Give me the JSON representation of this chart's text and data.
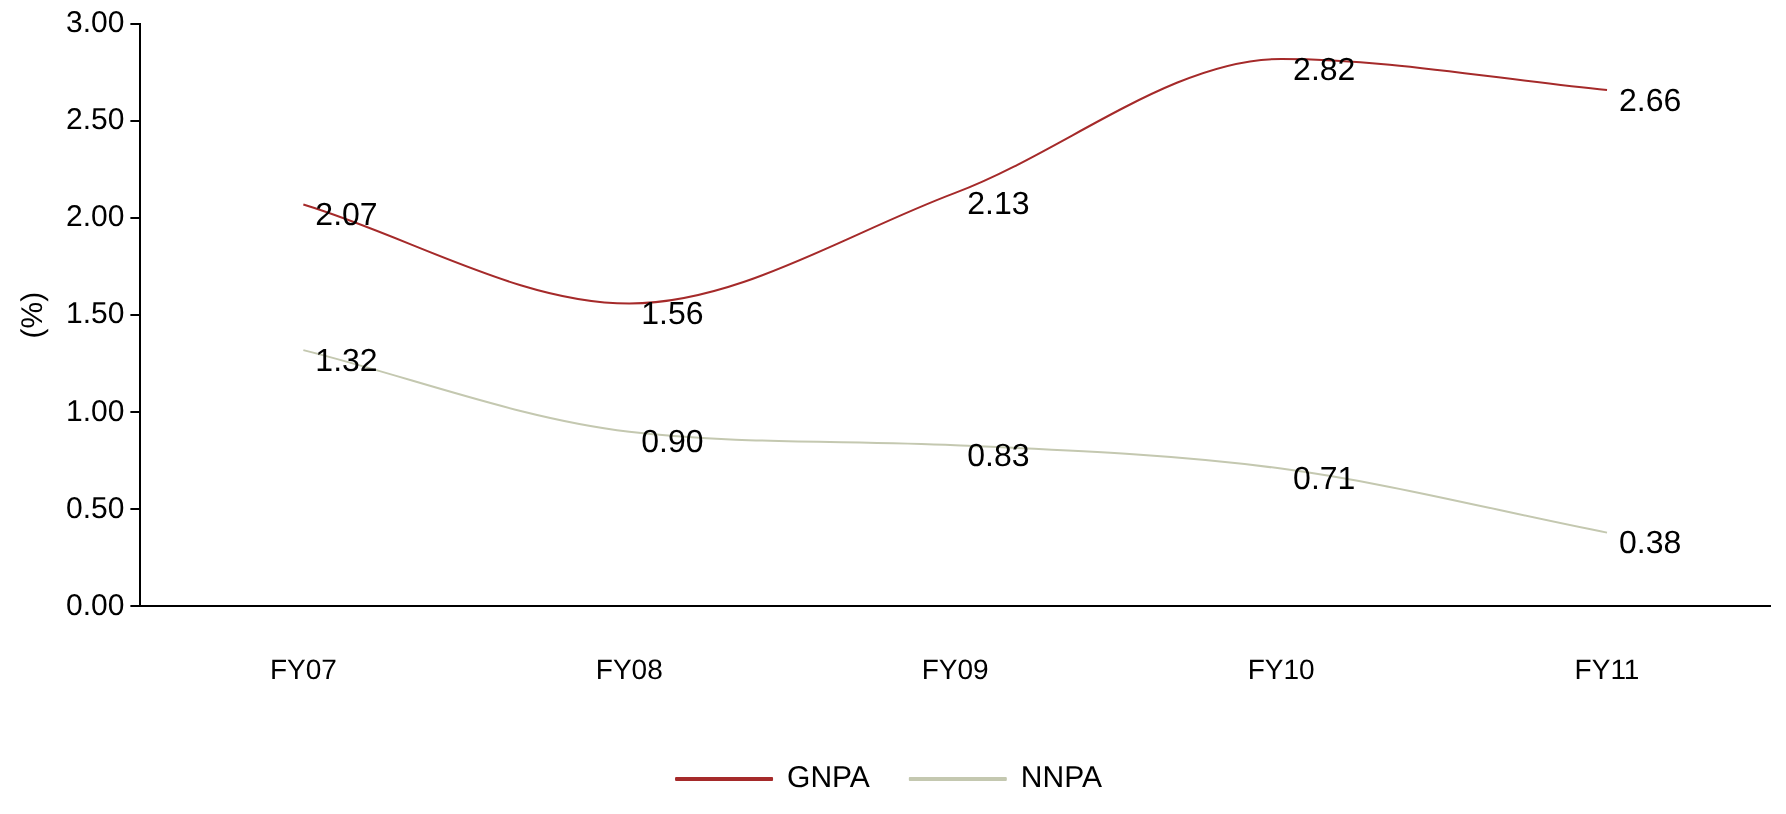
{
  "chart_data": {
    "type": "line",
    "ylabel": "(%)",
    "categories": [
      "FY07",
      "FY08",
      "FY09",
      "FY10",
      "FY11"
    ],
    "series": [
      {
        "name": "GNPA",
        "color": "#a52a2a",
        "values": [
          2.07,
          1.56,
          2.13,
          2.82,
          2.66
        ],
        "value_labels": [
          "2.07",
          "1.56",
          "2.13",
          "2.82",
          "2.66"
        ]
      },
      {
        "name": "NNPA",
        "color": "#c4c8b0",
        "values": [
          1.32,
          0.9,
          0.83,
          0.71,
          0.38
        ],
        "value_labels": [
          "1.32",
          "0.90",
          "0.83",
          "0.71",
          "0.38"
        ]
      }
    ],
    "ylim": [
      0,
      3
    ],
    "yticks": [
      {
        "value": 0,
        "label": "0.00"
      },
      {
        "value": 0.5,
        "label": "0.50"
      },
      {
        "value": 1,
        "label": "1.00"
      },
      {
        "value": 1.5,
        "label": "1.50"
      },
      {
        "value": 2,
        "label": "2.00"
      },
      {
        "value": 2.5,
        "label": "2.50"
      },
      {
        "value": 3,
        "label": "3.00"
      }
    ],
    "grid": false,
    "legend": "bottom",
    "marker": "none",
    "line_style": "solid"
  }
}
